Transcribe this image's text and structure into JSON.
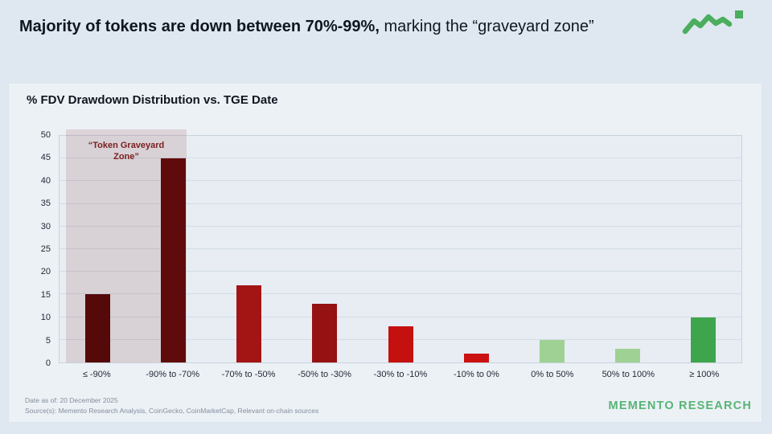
{
  "header": {
    "title_bold": "Majority of tokens are down between 70%-99%,",
    "title_regular": " marking the “graveyard zone”"
  },
  "logo": {
    "color": "#4bae5f"
  },
  "chart_data": {
    "type": "bar",
    "title": "% FDV Drawdown Distribution vs. TGE Date",
    "categories": [
      "≤ -90%",
      "-90% to -70%",
      "-70% to -50%",
      "-50% to -30%",
      "-30% to -10%",
      "-10% to 0%",
      "0% to 50%",
      "50% to 100%",
      "≥ 100%"
    ],
    "values": [
      15,
      45,
      17,
      13,
      8,
      2,
      5,
      3,
      10
    ],
    "bar_colors": [
      "#550909",
      "#600b0b",
      "#a31414",
      "#961111",
      "#c51010",
      "#cb1111",
      "#9ed193",
      "#9ed193",
      "#3fa54c"
    ],
    "xlabel": "",
    "ylabel": "",
    "ylim": [
      0,
      50
    ],
    "ytick_step": 5,
    "grid": true,
    "legend": "none",
    "annotation": {
      "label": "“Token Graveyard Zone”",
      "zone_categories": [
        "≤ -90%",
        "-90% to -70%"
      ],
      "zone_color": "rgba(139,62,62,0.16)",
      "label_color": "#7c2020"
    }
  },
  "footer": {
    "date": "Date as of: 20 December 2025",
    "source": "Source(s): Memento Research Analysis, CoinGecko, CoinMarketCap, Relevant on-chain sources",
    "brand": "MEMENTO RESEARCH",
    "brand_color": "#57b476"
  }
}
